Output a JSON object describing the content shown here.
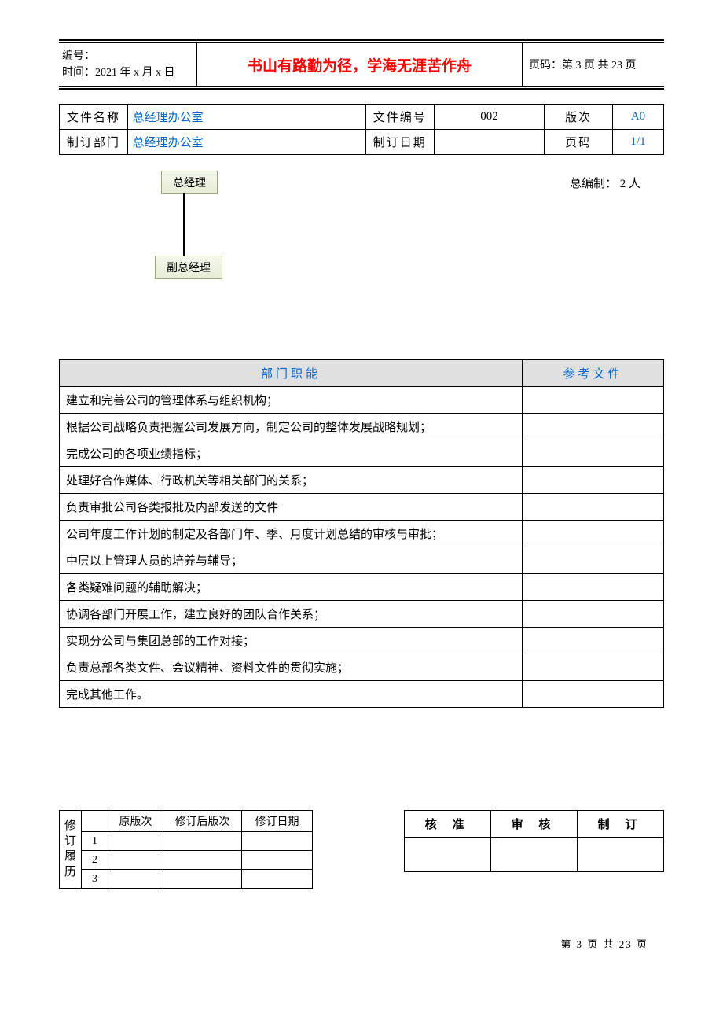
{
  "header": {
    "doc_no_label": "编号：",
    "time_label": "时间：2021 年 x 月 x 日",
    "motto": "书山有路勤为径，学海无涯苦作舟",
    "page_label": "页码：第 3 页 共 23 页"
  },
  "info": {
    "file_name_label": "文件名称",
    "file_name_value": "总经理办公室",
    "file_no_label": "文件编号",
    "file_no_value": "002",
    "version_label": "版次",
    "version_value": "A0",
    "dept_label": "制订部门",
    "dept_value": "总经理办公室",
    "date_label": "制订日期",
    "date_value": "",
    "page_label": "页码",
    "page_value": "1/1"
  },
  "org": {
    "node_top": "总经理",
    "node_bottom": "副总经理",
    "total_label": "总编制：  2 人"
  },
  "func_header": {
    "col1": "部门职能",
    "col2": "参考文件"
  },
  "functions": [
    "建立和完善公司的管理体系与组织机构；",
    "根据公司战略负责把握公司发展方向，制定公司的整体发展战略规划；",
    "完成公司的各项业绩指标；",
    "处理好合作媒体、行政机关等相关部门的关系；",
    "负责审批公司各类报批及内部发送的文件",
    "公司年度工作计划的制定及各部门年、季、月度计划总结的审核与审批；",
    "中层以上管理人员的培养与辅导；",
    "各类疑难问题的辅助解决；",
    "协调各部门开展工作，建立良好的团队合作关系；",
    "实现分公司与集团总部的工作对接；",
    "负责总部各类文件、会议精神、资料文件的贯彻实施；",
    "完成其他工作。"
  ],
  "revision": {
    "vlabel": "修订履历",
    "h1": "原版次",
    "h2": "修订后版次",
    "h3": "修订日期",
    "rows": [
      "1",
      "2",
      "3"
    ]
  },
  "approval": {
    "c1": "核 准",
    "c2": "审 核",
    "c3": "制 订"
  },
  "footer": "第 3 页 共 23 页"
}
